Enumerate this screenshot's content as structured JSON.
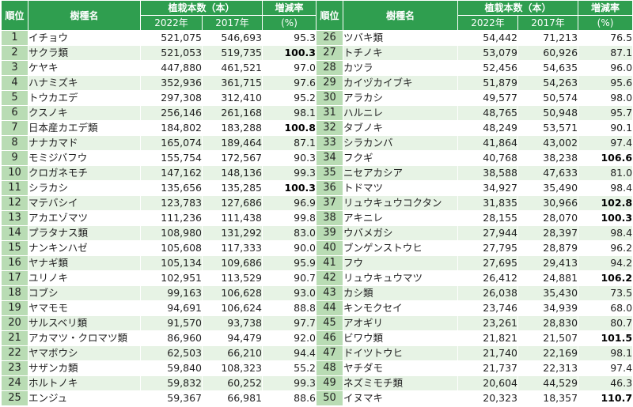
{
  "headers": {
    "rank": "順位",
    "species": "樹種名",
    "count": "植栽本数（本）",
    "year_a": "2022年",
    "year_b": "2017年",
    "rate": "増減率",
    "rate_unit": "(%)"
  },
  "highlight_threshold_note": "",
  "rows": [
    {
      "rank": "1",
      "name": "イチョウ",
      "a": "521,075",
      "b": "546,693",
      "rate": "95.3",
      "bold": false
    },
    {
      "rank": "2",
      "name": "サクラ類",
      "a": "521,053",
      "b": "519,735",
      "rate": "100.3",
      "bold": true
    },
    {
      "rank": "3",
      "name": "ケヤキ",
      "a": "447,880",
      "b": "461,521",
      "rate": "97.0",
      "bold": false
    },
    {
      "rank": "4",
      "name": "ハナミズキ",
      "a": "352,936",
      "b": "361,715",
      "rate": "97.6",
      "bold": false
    },
    {
      "rank": "5",
      "name": "トウカエデ",
      "a": "297,308",
      "b": "312,410",
      "rate": "95.2",
      "bold": false
    },
    {
      "rank": "6",
      "name": "クスノキ",
      "a": "256,146",
      "b": "261,168",
      "rate": "98.1",
      "bold": false
    },
    {
      "rank": "7",
      "name": "日本産カエデ類",
      "a": "184,802",
      "b": "183,288",
      "rate": "100.8",
      "bold": true
    },
    {
      "rank": "8",
      "name": "ナナカマド",
      "a": "165,074",
      "b": "189,464",
      "rate": "87.1",
      "bold": false
    },
    {
      "rank": "9",
      "name": "モミジバフウ",
      "a": "155,754",
      "b": "172,567",
      "rate": "90.3",
      "bold": false
    },
    {
      "rank": "10",
      "name": "クロガネモチ",
      "a": "147,162",
      "b": "148,136",
      "rate": "99.3",
      "bold": false
    },
    {
      "rank": "11",
      "name": "シラカシ",
      "a": "135,656",
      "b": "135,285",
      "rate": "100.3",
      "bold": true
    },
    {
      "rank": "12",
      "name": "マテバシイ",
      "a": "123,783",
      "b": "127,686",
      "rate": "96.9",
      "bold": false
    },
    {
      "rank": "13",
      "name": "アカエゾマツ",
      "a": "111,236",
      "b": "111,438",
      "rate": "99.8",
      "bold": false
    },
    {
      "rank": "14",
      "name": "プラタナス類",
      "a": "108,980",
      "b": "131,292",
      "rate": "83.0",
      "bold": false
    },
    {
      "rank": "15",
      "name": "ナンキンハゼ",
      "a": "105,608",
      "b": "117,333",
      "rate": "90.0",
      "bold": false
    },
    {
      "rank": "16",
      "name": "ヤナギ類",
      "a": "105,134",
      "b": "109,686",
      "rate": "95.9",
      "bold": false
    },
    {
      "rank": "17",
      "name": "ユリノキ",
      "a": "102,951",
      "b": "113,529",
      "rate": "90.7",
      "bold": false
    },
    {
      "rank": "18",
      "name": "コブシ",
      "a": "99,163",
      "b": "106,628",
      "rate": "93.0",
      "bold": false
    },
    {
      "rank": "19",
      "name": "ヤマモモ",
      "a": "94,691",
      "b": "106,624",
      "rate": "88.8",
      "bold": false
    },
    {
      "rank": "20",
      "name": "サルスベリ類",
      "a": "91,570",
      "b": "93,738",
      "rate": "97.7",
      "bold": false
    },
    {
      "rank": "21",
      "name": "アカマツ・クロマツ類",
      "a": "86,960",
      "b": "94,479",
      "rate": "92.0",
      "bold": false
    },
    {
      "rank": "22",
      "name": "ヤマボウシ",
      "a": "62,503",
      "b": "66,210",
      "rate": "94.4",
      "bold": false
    },
    {
      "rank": "23",
      "name": "サザンカ類",
      "a": "59,840",
      "b": "108,323",
      "rate": "55.2",
      "bold": false
    },
    {
      "rank": "24",
      "name": "ホルトノキ",
      "a": "59,832",
      "b": "60,252",
      "rate": "99.3",
      "bold": false
    },
    {
      "rank": "25",
      "name": "エンジュ",
      "a": "59,367",
      "b": "66,981",
      "rate": "88.6",
      "bold": false
    }
  ],
  "rows2": [
    {
      "rank": "26",
      "name": "ツバキ類",
      "a": "54,442",
      "b": "71,213",
      "rate": "76.5",
      "bold": false
    },
    {
      "rank": "27",
      "name": "トチノキ",
      "a": "53,079",
      "b": "60,926",
      "rate": "87.1",
      "bold": false
    },
    {
      "rank": "28",
      "name": "カツラ",
      "a": "52,456",
      "b": "54,635",
      "rate": "96.0",
      "bold": false
    },
    {
      "rank": "29",
      "name": "カイヅカイブキ",
      "a": "51,879",
      "b": "54,263",
      "rate": "95.6",
      "bold": false
    },
    {
      "rank": "30",
      "name": "アラカシ",
      "a": "49,577",
      "b": "50,574",
      "rate": "98.0",
      "bold": false
    },
    {
      "rank": "31",
      "name": "ハルニレ",
      "a": "48,765",
      "b": "50,948",
      "rate": "95.7",
      "bold": false
    },
    {
      "rank": "32",
      "name": "タブノキ",
      "a": "48,249",
      "b": "53,571",
      "rate": "90.1",
      "bold": false
    },
    {
      "rank": "33",
      "name": "シラカンバ",
      "a": "41,864",
      "b": "43,002",
      "rate": "97.4",
      "bold": false
    },
    {
      "rank": "34",
      "name": "フクギ",
      "a": "40,768",
      "b": "38,238",
      "rate": "106.6",
      "bold": true
    },
    {
      "rank": "35",
      "name": "ニセアカシア",
      "a": "38,588",
      "b": "47,633",
      "rate": "81.0",
      "bold": false
    },
    {
      "rank": "36",
      "name": "トドマツ",
      "a": "34,927",
      "b": "35,490",
      "rate": "98.4",
      "bold": false
    },
    {
      "rank": "37",
      "name": "リュウキュウコクタン",
      "a": "31,835",
      "b": "30,966",
      "rate": "102.8",
      "bold": true
    },
    {
      "rank": "38",
      "name": "アキニレ",
      "a": "28,155",
      "b": "28,070",
      "rate": "100.3",
      "bold": true
    },
    {
      "rank": "39",
      "name": "ウバメガシ",
      "a": "27,944",
      "b": "28,397",
      "rate": "98.4",
      "bold": false
    },
    {
      "rank": "40",
      "name": "ブンゲンストウヒ",
      "a": "27,795",
      "b": "28,879",
      "rate": "96.2",
      "bold": false
    },
    {
      "rank": "41",
      "name": "フウ",
      "a": "27,695",
      "b": "29,413",
      "rate": "94.2",
      "bold": false
    },
    {
      "rank": "42",
      "name": "リュウキュウマツ",
      "a": "26,412",
      "b": "24,881",
      "rate": "106.2",
      "bold": true
    },
    {
      "rank": "43",
      "name": "カシ類",
      "a": "26,038",
      "b": "35,430",
      "rate": "73.5",
      "bold": false
    },
    {
      "rank": "44",
      "name": "キンモクセイ",
      "a": "23,746",
      "b": "34,939",
      "rate": "68.0",
      "bold": false
    },
    {
      "rank": "45",
      "name": "アオギリ",
      "a": "23,261",
      "b": "28,830",
      "rate": "80.7",
      "bold": false
    },
    {
      "rank": "46",
      "name": "ビワウ類",
      "a": "21,821",
      "b": "21,507",
      "rate": "101.5",
      "bold": true
    },
    {
      "rank": "47",
      "name": "ドイツトウヒ",
      "a": "21,740",
      "b": "22,169",
      "rate": "98.1",
      "bold": false
    },
    {
      "rank": "48",
      "name": "ヤチダモ",
      "a": "21,737",
      "b": "22,313",
      "rate": "97.4",
      "bold": false
    },
    {
      "rank": "49",
      "name": "ネズミモチ類",
      "a": "20,604",
      "b": "44,529",
      "rate": "46.3",
      "bold": false
    },
    {
      "rank": "50",
      "name": "イヌマキ",
      "a": "20,323",
      "b": "18,357",
      "rate": "110.7",
      "bold": true
    }
  ]
}
